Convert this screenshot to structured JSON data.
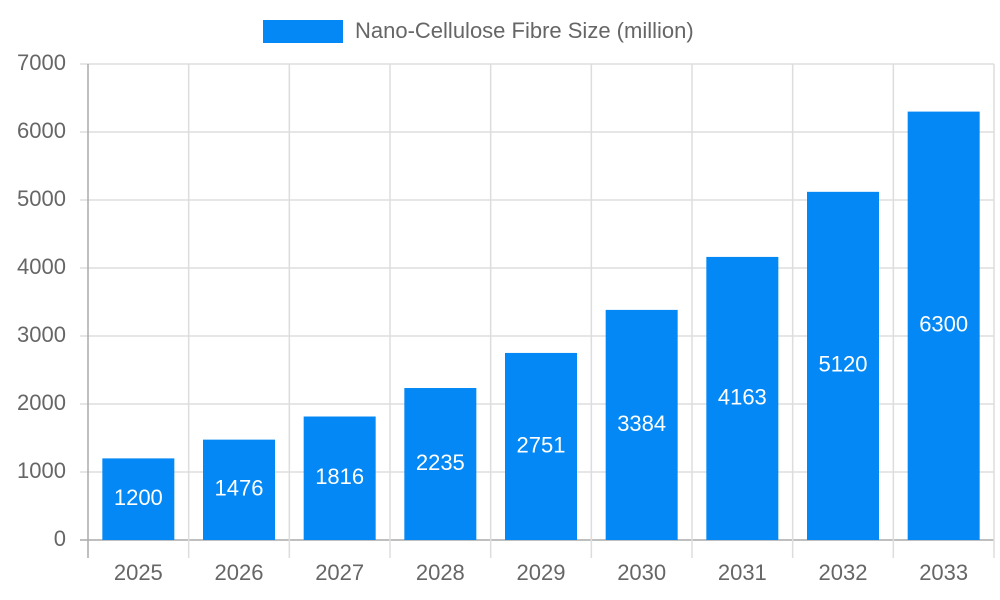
{
  "chart_data": {
    "type": "bar",
    "categories": [
      "2025",
      "2026",
      "2027",
      "2028",
      "2029",
      "2030",
      "2031",
      "2032",
      "2033"
    ],
    "series": [
      {
        "name": "Nano-Cellulose Fibre Size (million)",
        "color": "#0388f5",
        "values": [
          1200,
          1476,
          1816,
          2235,
          2751,
          3384,
          4163,
          5120,
          6300
        ]
      }
    ],
    "ylim": [
      0,
      7000
    ],
    "yticks": [
      0,
      1000,
      2000,
      3000,
      4000,
      5000,
      6000,
      7000
    ],
    "grid": true,
    "legend": "top",
    "data_labels": true
  }
}
